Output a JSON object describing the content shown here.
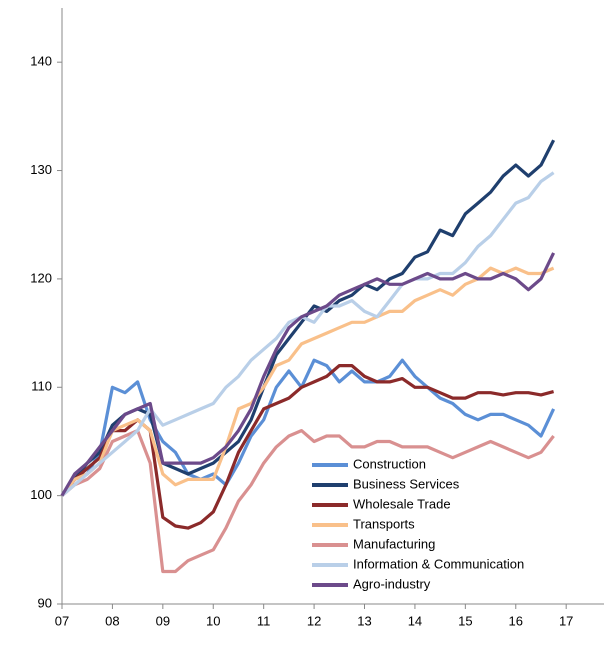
{
  "chart_data": {
    "type": "line",
    "x": [
      2007,
      2007.25,
      2007.5,
      2007.75,
      2008,
      2008.25,
      2008.5,
      2008.75,
      2009,
      2009.25,
      2009.5,
      2009.75,
      2010,
      2010.25,
      2010.5,
      2010.75,
      2011,
      2011.25,
      2011.5,
      2011.75,
      2012,
      2012.25,
      2012.5,
      2012.75,
      2013,
      2013.25,
      2013.5,
      2013.75,
      2014,
      2014.25,
      2014.5,
      2014.75,
      2015,
      2015.25,
      2015.5,
      2015.75,
      2016,
      2016.25,
      2016.5,
      2016.75
    ],
    "series": [
      {
        "name": "Construction",
        "color": "#5b8fd6",
        "values": [
          100,
          101.5,
          102,
          104,
          110,
          109.5,
          110.5,
          107,
          105,
          104,
          102,
          101.5,
          102,
          101,
          103,
          105.5,
          107,
          110,
          111.5,
          110,
          112.5,
          112,
          110.5,
          111.5,
          110.5,
          110.5,
          111,
          112.5,
          111,
          110,
          109,
          108.5,
          107.5,
          107,
          107.5,
          107.5,
          107,
          106.5,
          105.5,
          108
        ]
      },
      {
        "name": "Business Services",
        "color": "#1f3f6e",
        "values": [
          100,
          101.5,
          103,
          104,
          106.5,
          107.5,
          108,
          107.5,
          103,
          102.5,
          102,
          102.5,
          103,
          104,
          105,
          107,
          110,
          113,
          114.5,
          116,
          117.5,
          117,
          118,
          118.5,
          119.5,
          119,
          120,
          120.5,
          122,
          122.5,
          124.5,
          124,
          126,
          127,
          128,
          129.5,
          130.5,
          129.5,
          130.5,
          132.8
        ]
      },
      {
        "name": "Wholesale Trade",
        "color": "#8b2a2a",
        "values": [
          100,
          101.5,
          102.5,
          103.5,
          106,
          106,
          107,
          106,
          98,
          97.2,
          97,
          97.5,
          98.5,
          101,
          104,
          106,
          108,
          108.5,
          109,
          110,
          110.5,
          111,
          112,
          112,
          111,
          110.5,
          110.5,
          110.8,
          110,
          110,
          109.5,
          109,
          109,
          109.5,
          109.5,
          109.3,
          109.5,
          109.5,
          109.3,
          109.6
        ]
      },
      {
        "name": "Transports",
        "color": "#f9c08a",
        "values": [
          100,
          101.5,
          102,
          103,
          106,
          106.5,
          107,
          106,
          102,
          101,
          101.5,
          101.5,
          101.5,
          104.5,
          108,
          108.5,
          110,
          112,
          112.5,
          114,
          114.5,
          115,
          115.5,
          116,
          116,
          116.5,
          117,
          117,
          118,
          118.5,
          119,
          118.5,
          119.5,
          120,
          121,
          120.5,
          121,
          120.5,
          120.5,
          121
        ]
      },
      {
        "name": "Manufacturing",
        "color": "#d99090",
        "values": [
          100,
          101,
          101.5,
          102.5,
          105,
          105.5,
          106,
          103,
          93,
          93,
          94,
          94.5,
          95,
          97,
          99.5,
          101,
          103,
          104.5,
          105.5,
          106,
          105,
          105.5,
          105.5,
          104.5,
          104.5,
          105,
          105,
          104.5,
          104.5,
          104.5,
          104,
          103.5,
          104,
          104.5,
          105,
          104.5,
          104,
          103.5,
          104,
          105.5
        ]
      },
      {
        "name": "Information & Communication",
        "color": "#b9cfe8",
        "values": [
          100,
          101,
          102,
          103,
          104,
          105,
          106,
          108,
          106.5,
          107,
          107.5,
          108,
          108.5,
          110,
          111,
          112.5,
          113.5,
          114.5,
          116,
          116.5,
          116,
          117.5,
          117.5,
          118,
          117,
          116.5,
          118,
          119.5,
          120,
          120,
          120.5,
          120.5,
          121.5,
          123,
          124,
          125.5,
          127,
          127.5,
          129,
          129.8
        ]
      },
      {
        "name": "Agro-industry",
        "color": "#6c4a8a",
        "values": [
          100,
          102,
          103,
          104.5,
          106,
          107.5,
          108,
          108.5,
          103,
          103,
          103,
          103,
          103.5,
          104.5,
          106,
          108,
          111,
          113.5,
          115.5,
          116.5,
          117,
          117.5,
          118.5,
          119,
          119.5,
          120,
          119.5,
          119.5,
          120,
          120.5,
          120,
          120,
          120.5,
          120,
          120,
          120.5,
          120,
          119,
          120,
          122.4
        ]
      }
    ],
    "xlim": [
      2007,
      2017.75
    ],
    "xticks": [
      {
        "value": 2007,
        "label": "07"
      },
      {
        "value": 2008,
        "label": "08"
      },
      {
        "value": 2009,
        "label": "09"
      },
      {
        "value": 2010,
        "label": "10"
      },
      {
        "value": 2011,
        "label": "11"
      },
      {
        "value": 2012,
        "label": "12"
      },
      {
        "value": 2013,
        "label": "13"
      },
      {
        "value": 2014,
        "label": "14"
      },
      {
        "value": 2015,
        "label": "15"
      },
      {
        "value": 2016,
        "label": "16"
      },
      {
        "value": 2017,
        "label": "17"
      }
    ],
    "ylim": [
      90,
      145
    ],
    "yticks": [
      90,
      100,
      110,
      120,
      130,
      140
    ],
    "legend": "lower right"
  }
}
